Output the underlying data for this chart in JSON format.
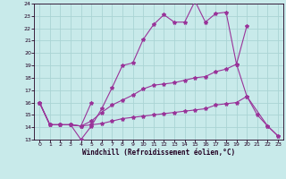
{
  "xlabel": "Windchill (Refroidissement éolien,°C)",
  "xlim": [
    -0.5,
    23.5
  ],
  "ylim": [
    13,
    24
  ],
  "yticks": [
    13,
    14,
    15,
    16,
    17,
    18,
    19,
    20,
    21,
    22,
    23,
    24
  ],
  "xticks": [
    0,
    1,
    2,
    3,
    4,
    5,
    6,
    7,
    8,
    9,
    10,
    11,
    12,
    13,
    14,
    15,
    16,
    17,
    18,
    19,
    20,
    21,
    22,
    23
  ],
  "background_color": "#c8eaea",
  "grid_color": "#aad4d4",
  "line_color": "#993399",
  "lines": [
    {
      "x": [
        0,
        1,
        2,
        3,
        4,
        5,
        6,
        7,
        8,
        9,
        10,
        11,
        12,
        13,
        14,
        15,
        16,
        17,
        18,
        19,
        20
      ],
      "y": [
        16,
        14.2,
        14.2,
        14.2,
        13,
        14.1,
        15.5,
        17.2,
        19,
        19.2,
        21.1,
        22.3,
        23.1,
        22.5,
        22.5,
        24.2,
        22.5,
        23.2,
        23.3,
        19.1,
        22.2
      ]
    },
    {
      "x": [
        0,
        1,
        2,
        3,
        4,
        5
      ],
      "y": [
        16,
        14.2,
        14.2,
        14.2,
        14.1,
        16
      ]
    },
    {
      "x": [
        0,
        1,
        2,
        3,
        4,
        5,
        6,
        7,
        8,
        9,
        10,
        11,
        12,
        13,
        14,
        15,
        16,
        17,
        18,
        19,
        20,
        21,
        22,
        23
      ],
      "y": [
        16,
        14.2,
        14.2,
        14.2,
        14.1,
        14.5,
        15.2,
        15.8,
        16.2,
        16.6,
        17.1,
        17.4,
        17.5,
        17.6,
        17.8,
        18.0,
        18.1,
        18.5,
        18.7,
        19.1,
        16.5,
        15.0,
        14.1,
        13.3
      ]
    },
    {
      "x": [
        0,
        1,
        2,
        3,
        4,
        5,
        6,
        7,
        8,
        9,
        10,
        11,
        12,
        13,
        14,
        15,
        16,
        17,
        18,
        19,
        20,
        22,
        23
      ],
      "y": [
        16,
        14.2,
        14.2,
        14.2,
        14.1,
        14.2,
        14.3,
        14.5,
        14.7,
        14.8,
        14.9,
        15.0,
        15.1,
        15.2,
        15.3,
        15.4,
        15.5,
        15.8,
        15.9,
        16.0,
        16.5,
        14.1,
        13.3
      ]
    }
  ]
}
